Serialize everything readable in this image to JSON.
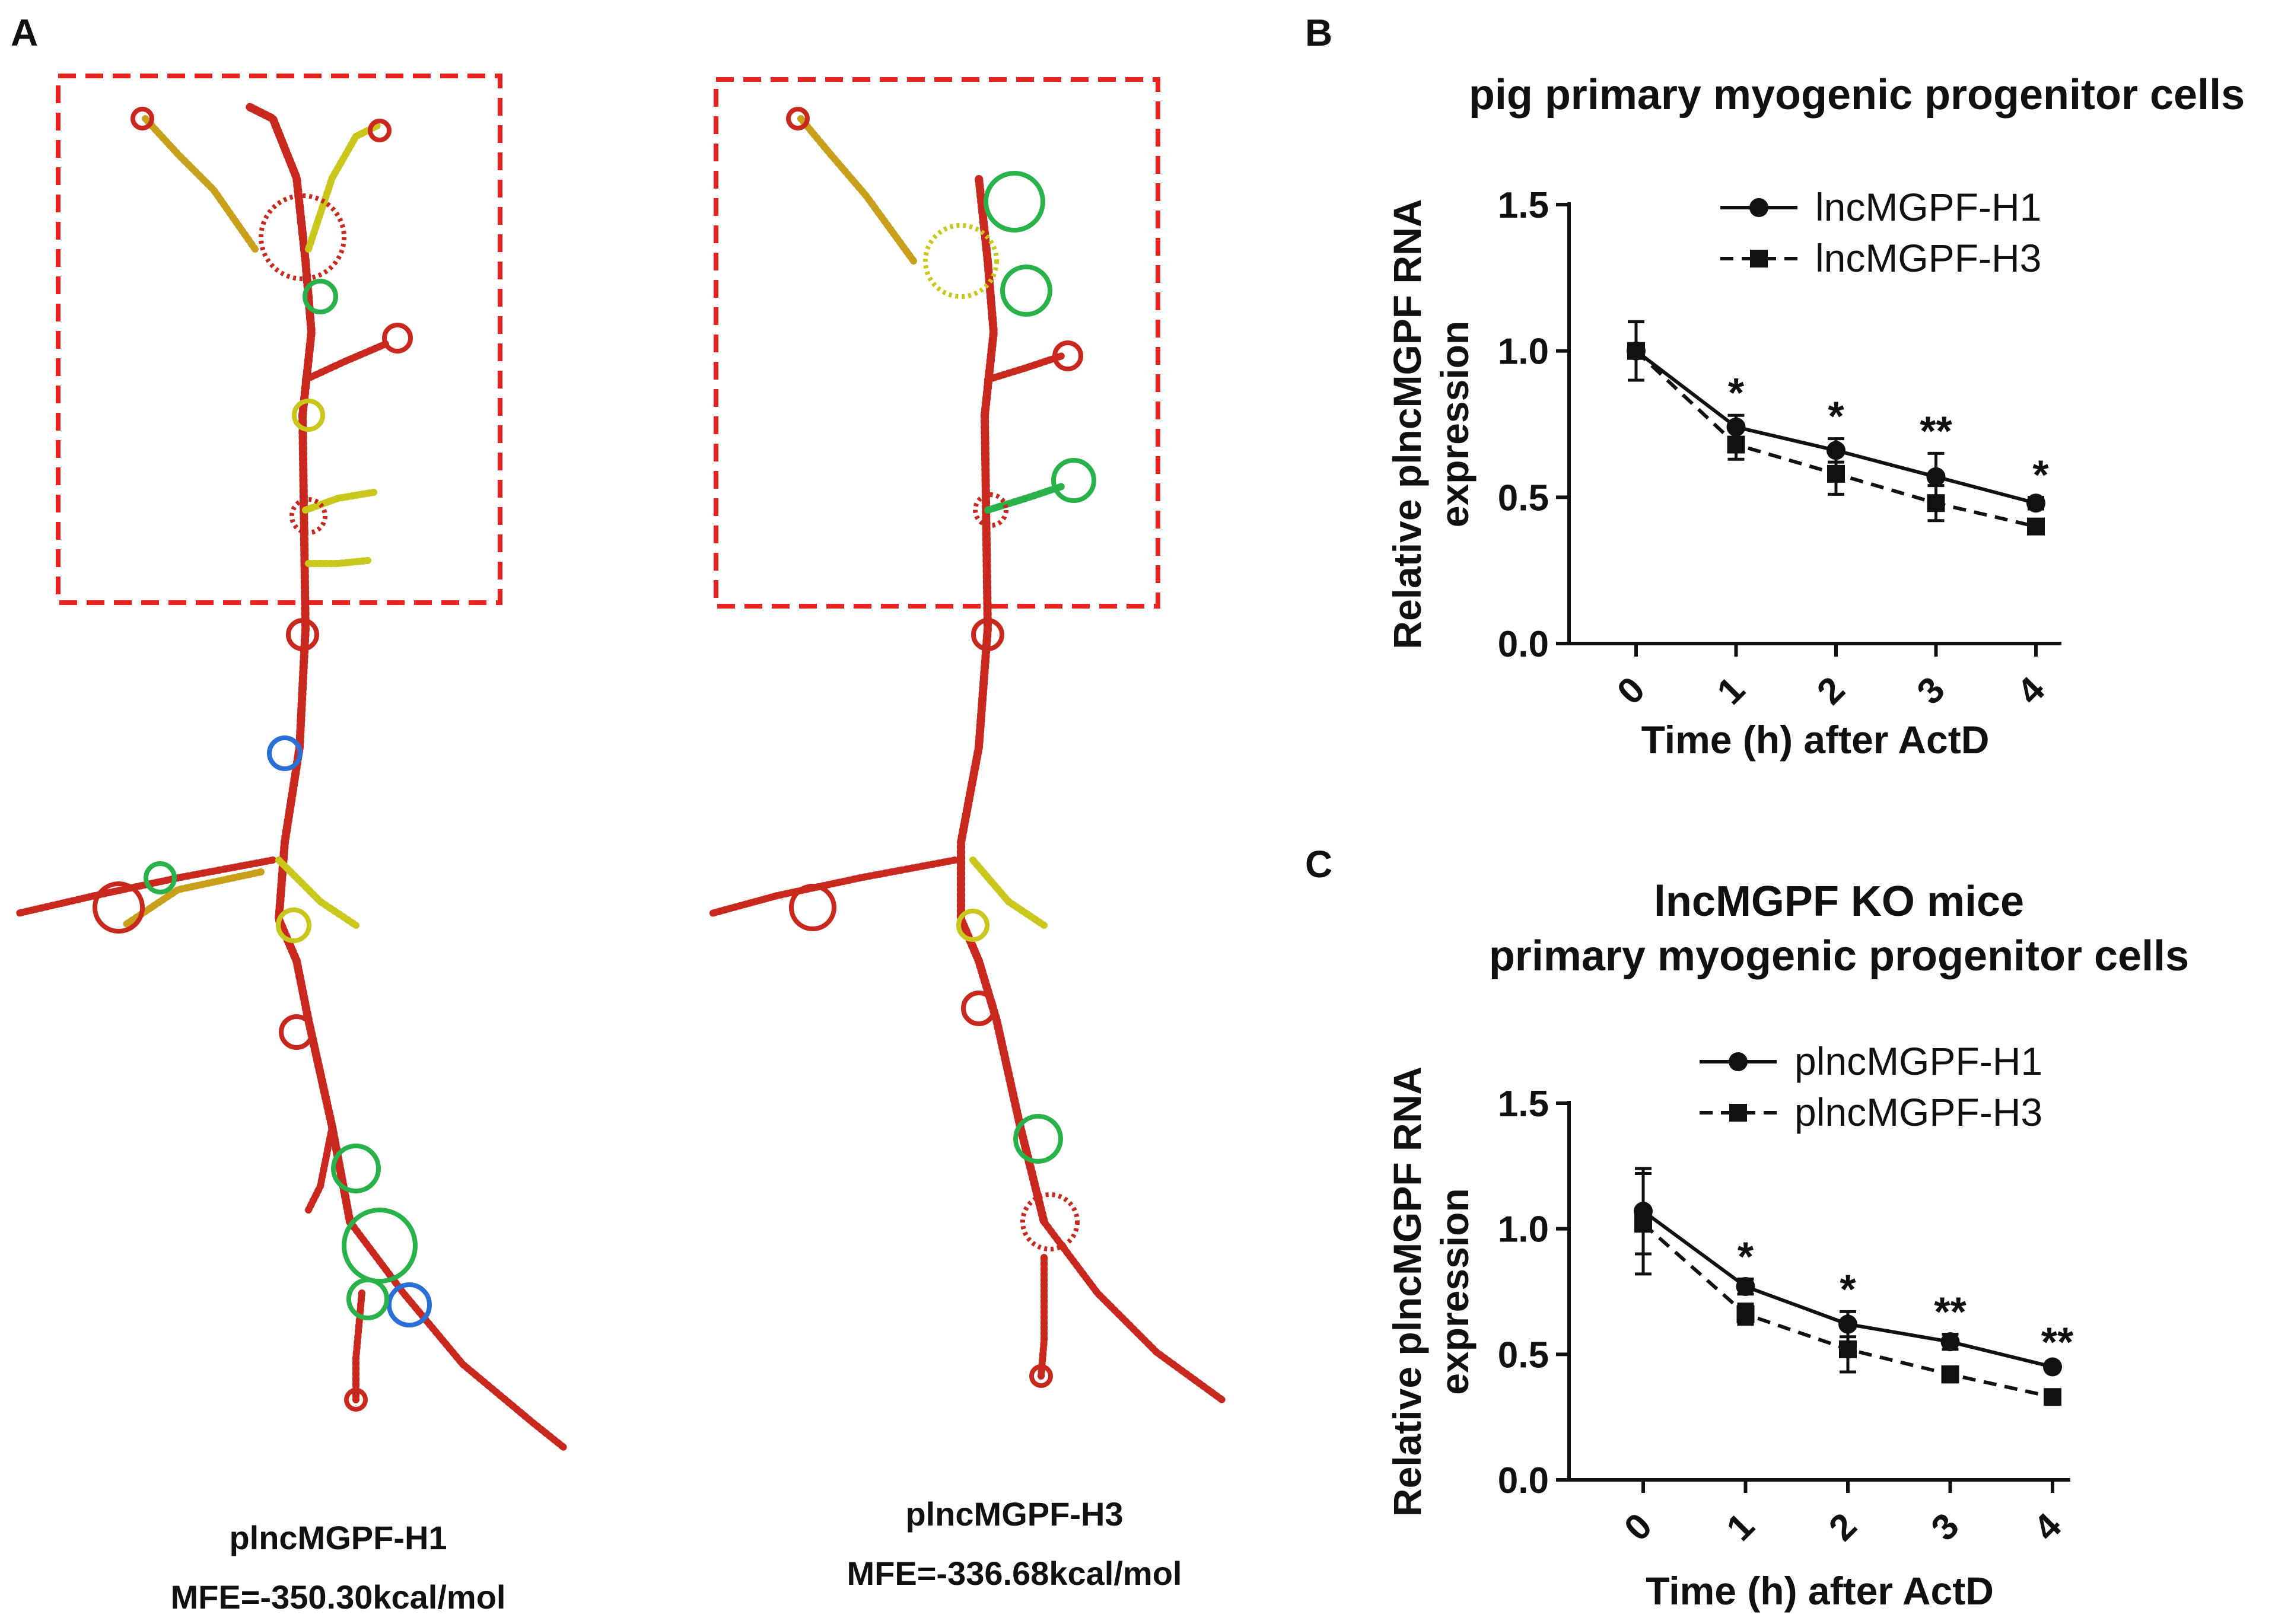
{
  "panels": {
    "a": "A",
    "b": "B",
    "c": "C"
  },
  "structures": [
    {
      "name": "plncMGPF-H1",
      "mfe": "MFE=-350.30kcal/mol"
    },
    {
      "name": "plncMGPF-H3",
      "mfe": "MFE=-336.68kcal/mol"
    }
  ],
  "chart_data": [
    {
      "type": "line",
      "title": "pig primary myogenic progenitor cells",
      "xlabel": "Time (h) after ActD",
      "ylabel": [
        "Relative  plncMGPF RNA",
        "expression"
      ],
      "x": [
        0,
        1,
        2,
        3,
        4
      ],
      "x_tick_labels": [
        "0",
        "1",
        "2",
        "3",
        "4"
      ],
      "ylim": [
        0,
        1.5
      ],
      "y_ticks": [
        "0.0",
        "0.5",
        "1.0",
        "1.5"
      ],
      "legend_position": "top-right",
      "grid": false,
      "series": [
        {
          "name": "lncMGPF-H1",
          "marker": "circle",
          "line": "solid",
          "values": [
            1.0,
            0.74,
            0.66,
            0.57,
            0.48
          ],
          "errors": [
            0.1,
            0.04,
            0.04,
            0.08,
            0.02
          ]
        },
        {
          "name": "lncMGPF-H3",
          "marker": "square",
          "line": "dashed",
          "values": [
            1.0,
            0.68,
            0.58,
            0.48,
            0.4
          ],
          "errors": [
            0.1,
            0.05,
            0.07,
            0.06,
            0.02
          ]
        }
      ],
      "significance": [
        "",
        "*",
        "*",
        "**",
        "*"
      ]
    },
    {
      "type": "line",
      "title": [
        "lncMGPF KO mice",
        "primary myogenic progenitor cells"
      ],
      "xlabel": "Time (h) after ActD",
      "ylabel": [
        "Relative  plncMGPF RNA",
        "expression"
      ],
      "x": [
        0,
        1,
        2,
        3,
        4
      ],
      "x_tick_labels": [
        "0",
        "1",
        "2",
        "3",
        "4"
      ],
      "ylim": [
        0,
        1.5
      ],
      "y_ticks": [
        "0.0",
        "0.5",
        "1.0",
        "1.5"
      ],
      "legend_position": "top-right",
      "grid": false,
      "series": [
        {
          "name": "plncMGPF-H1",
          "marker": "circle",
          "line": "solid",
          "values": [
            1.07,
            0.77,
            0.62,
            0.55,
            0.45
          ],
          "errors": [
            0.17,
            0.03,
            0.05,
            0.03,
            0.01
          ]
        },
        {
          "name": "plncMGPF-H3",
          "marker": "square",
          "line": "dashed",
          "values": [
            1.02,
            0.66,
            0.52,
            0.42,
            0.33
          ],
          "errors": [
            0.2,
            0.04,
            0.09,
            0.03,
            0.01
          ]
        }
      ],
      "significance": [
        "",
        "*",
        "*",
        "**",
        "**"
      ]
    }
  ],
  "colors": {
    "highlight_box": "#e8231f",
    "stem": "#c8281e",
    "pair_yellow": "#c9c61c",
    "loop_green": "#29b14a",
    "loop_blue": "#2a6fd6"
  }
}
